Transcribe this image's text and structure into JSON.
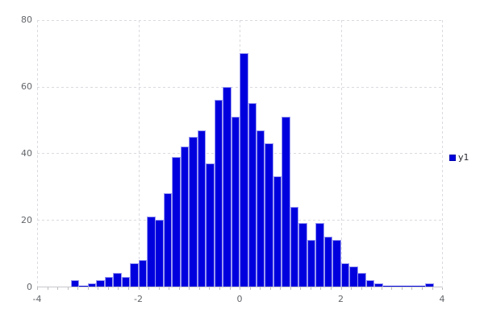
{
  "legend": {
    "label": "y1"
  },
  "colors": {
    "bar_fill": "#0000de",
    "bar_border": "#9a9af2",
    "gridline": "#d9d9e0",
    "axis_line": "#c8c8cc",
    "tick_label": "#63666a"
  },
  "chart_data": {
    "type": "bar",
    "subtype": "histogram",
    "title": "",
    "xlabel": "",
    "ylabel": "",
    "series_name": "y1",
    "bin_start": -3.3333,
    "bin_width": 0.16667,
    "counts": [
      2,
      0,
      1,
      2,
      3,
      4,
      3,
      7,
      8,
      21,
      20,
      28,
      39,
      42,
      45,
      47,
      37,
      56,
      60,
      51,
      70,
      55,
      47,
      43,
      33,
      51,
      24,
      19,
      14,
      19,
      15,
      14,
      7,
      6,
      4,
      2,
      1,
      0,
      0,
      0,
      0,
      0,
      1
    ],
    "xlim": [
      -4,
      4
    ],
    "ylim": [
      0,
      80
    ],
    "x_ticks": [
      -4,
      -2,
      0,
      2,
      4
    ],
    "y_ticks": [
      0,
      20,
      40,
      60,
      80
    ],
    "x_minor_tick_step": 0.2,
    "grid": "dashed",
    "legend_position": "right"
  }
}
